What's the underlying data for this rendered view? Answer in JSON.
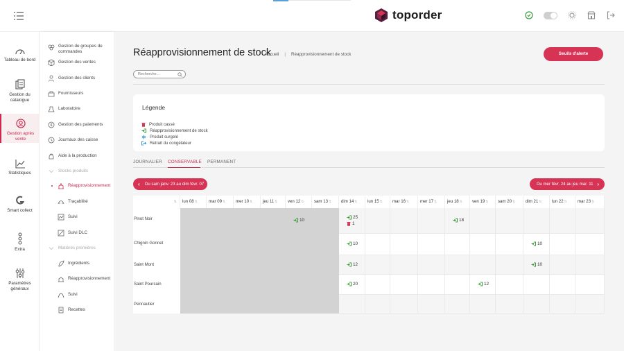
{
  "brand": {
    "name": "toporder",
    "accent": "#d63355"
  },
  "header": {
    "icons": [
      "menu-icon",
      "status-icon",
      "theme-toggle",
      "settings-icon",
      "shop-icon",
      "logout-icon"
    ]
  },
  "rail": {
    "items": [
      {
        "label": "Tableau de bord",
        "icon": "dashboard-icon"
      },
      {
        "label": "Gestion du catalogue",
        "icon": "catalogue-icon"
      },
      {
        "label": "Gestion après vente",
        "icon": "after-sales-icon",
        "active": true
      },
      {
        "label": "Statistiques",
        "icon": "stats-icon"
      },
      {
        "label": "Smart collect",
        "icon": "smart-collect-icon"
      },
      {
        "label": "Extra",
        "icon": "extra-icon"
      },
      {
        "label": "Paramètres généraux",
        "icon": "params-icon"
      }
    ]
  },
  "subnav": {
    "items": [
      {
        "label": "Gestion de groupes de commandes",
        "icon": "groups-icon"
      },
      {
        "label": "Gestion des ventes",
        "icon": "sales-icon"
      },
      {
        "label": "Gestion des clients",
        "icon": "clients-icon"
      },
      {
        "label": "Fournisseurs",
        "icon": "suppliers-icon"
      },
      {
        "label": "Laboratoire",
        "icon": "lab-icon"
      },
      {
        "label": "Gestion des paiements",
        "icon": "payments-icon"
      },
      {
        "label": "Journaux des caisse",
        "icon": "cash-journal-icon"
      },
      {
        "label": "Aide à la production",
        "icon": "production-icon"
      },
      {
        "label": "Stocks produits",
        "icon": "chevron-down-icon"
      },
      {
        "label": "Réapprovisionnement",
        "icon": "restock-icon"
      },
      {
        "label": "Traçabilité",
        "icon": "traceability-icon"
      },
      {
        "label": "Suivi",
        "icon": "tracking-icon"
      },
      {
        "label": "Suivi DLC",
        "icon": "dlc-icon"
      },
      {
        "label": "Matières premières",
        "icon": "chevron-down-icon"
      },
      {
        "label": "Ingrédients",
        "icon": "ingredients-icon"
      },
      {
        "label": "Réapprovisionnement",
        "icon": "restock-icon"
      },
      {
        "label": "Suivi",
        "icon": "tracking-icon"
      },
      {
        "label": "Recettes",
        "icon": "recipes-icon"
      }
    ]
  },
  "page": {
    "title": "Réapprovisionnement de stock",
    "breadcrumb": [
      "Accueil",
      "|",
      "Réapprovisionnement de stock"
    ],
    "alert_button": "Seuils d'alerte",
    "search_placeholder": "Recherche..."
  },
  "legend": {
    "title": "Légende",
    "items": [
      {
        "label": "Produit cassé",
        "icon": "trash-icon",
        "color": "#d63355"
      },
      {
        "label": "Réapprovisionnement de stock",
        "icon": "sign-in-icon",
        "color": "#3a9a3a"
      },
      {
        "label": "Produit surgelé",
        "icon": "snowflake-icon",
        "color": "#3a9ac8"
      },
      {
        "label": "Retrait du congélateur",
        "icon": "sign-out-icon",
        "color": "#3a9ac8"
      }
    ]
  },
  "tabs": [
    {
      "label": "JOURNALIER"
    },
    {
      "label": "CONSERVABLE",
      "active": true
    },
    {
      "label": "PERMANENT"
    }
  ],
  "week_nav": {
    "prev": "Du sam janv. 23 au dim févr. 07",
    "next": "Du mer févr. 24 au jeu mar. 11"
  },
  "calendar": {
    "days": [
      "lun 08",
      "mar 09",
      "mer 10",
      "jeu 11",
      "ven 12",
      "sam 13",
      "dim 14",
      "lun 15",
      "mar 16",
      "mer 17",
      "jeu 18",
      "ven 19",
      "sam 20",
      "dim 21",
      "lun 22",
      "mar 23"
    ],
    "products": [
      "Pinot Noir",
      "Chignin Gonnet",
      "Saint Mont",
      "Saint Pourcain",
      "Pennautier"
    ],
    "entries": [
      {
        "row": 0,
        "day": 4,
        "type": "restock",
        "qty": "10"
      },
      {
        "row": 0,
        "day": 6,
        "type": "restock",
        "qty": "25"
      },
      {
        "row": 0,
        "day": 6,
        "type": "broken",
        "qty": "1"
      },
      {
        "row": 0,
        "day": 10,
        "type": "restock",
        "qty": "18"
      },
      {
        "row": 1,
        "day": 6,
        "type": "restock",
        "qty": "10"
      },
      {
        "row": 1,
        "day": 13,
        "type": "restock",
        "qty": "10"
      },
      {
        "row": 2,
        "day": 6,
        "type": "restock",
        "qty": "12"
      },
      {
        "row": 2,
        "day": 13,
        "type": "restock",
        "qty": "10"
      },
      {
        "row": 3,
        "day": 6,
        "type": "restock",
        "qty": "20"
      },
      {
        "row": 3,
        "day": 11,
        "type": "restock",
        "qty": "12"
      }
    ]
  }
}
